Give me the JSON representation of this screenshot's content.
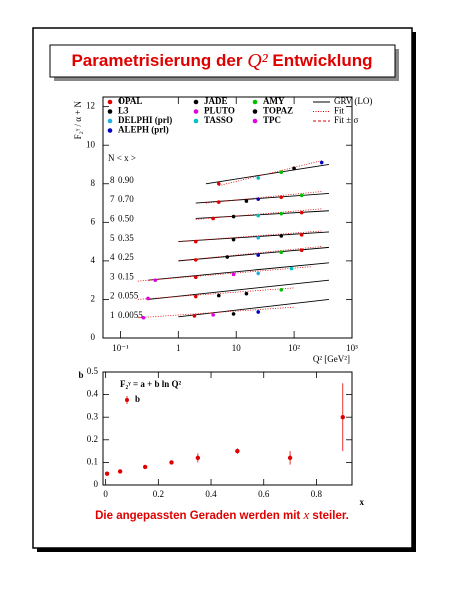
{
  "title": [
    "Parametrisierung der ",
    "Q²",
    " Entwicklung"
  ],
  "footer": [
    "Die angepassten Geraden werden mit ",
    "x",
    " steiler."
  ],
  "chart_data": [
    {
      "type": "line",
      "y_label": "F₂ᵞ / α + N",
      "x_label": "Q² [GeV²]",
      "log_x": true,
      "xlim": [
        0.05,
        1000
      ],
      "xticks": [
        {
          "value": 0.1,
          "label": "10⁻¹"
        },
        1,
        10,
        {
          "value": 100,
          "label": "10²"
        },
        {
          "value": 1000,
          "label": "10³"
        }
      ],
      "ylim": [
        0,
        12.5
      ],
      "yticks": [
        0,
        2,
        4,
        6,
        8,
        10,
        12
      ],
      "legend": [
        {
          "name": "OPAL",
          "color": "#e00000"
        },
        {
          "name": "L3",
          "color": "#000000"
        },
        {
          "name": "DELPHI (prl)",
          "color": "#20b0e0"
        },
        {
          "name": "ALEPH (prl)",
          "color": "#0000c0"
        },
        {
          "name": "JADE",
          "color": "#000000"
        },
        {
          "name": "PLUTO",
          "color": "#e000e0"
        },
        {
          "name": "TASSO",
          "color": "#00c0c0"
        },
        {
          "name": "AMY",
          "color": "#00c000"
        },
        {
          "name": "TOPAZ",
          "color": "#000000"
        },
        {
          "name": "TPC",
          "color": "#e000e0"
        }
      ],
      "line_legend": [
        {
          "name": "GRV (LO)",
          "color": "#000000",
          "dash": "none"
        },
        {
          "name": "Fit",
          "color": "#e00000",
          "dash": "1,1.5"
        },
        {
          "name": "Fit ± σ",
          "color": "#e00000",
          "dash": "3,2"
        }
      ],
      "bin_header": "N  < x >",
      "bins": [
        {
          "N": 1,
          "x": "0.0055",
          "grv_q2": [
            1,
            400
          ],
          "grv": [
            1.1,
            2.0
          ],
          "fit_q2": [
            0.2,
            100
          ],
          "fit": [
            1.05,
            1.6
          ],
          "points": [
            {
              "q2": 0.25,
              "v": 1.05,
              "exp": 9
            },
            {
              "q2": 1.9,
              "v": 1.15,
              "exp": 0
            },
            {
              "q2": 4,
              "v": 1.2,
              "exp": 5
            },
            {
              "q2": 9,
              "v": 1.25,
              "exp": 1
            },
            {
              "q2": 24,
              "v": 1.35,
              "exp": 3
            }
          ]
        },
        {
          "N": 2,
          "x": "0.055",
          "grv_q2": [
            0.3,
            400
          ],
          "grv": [
            2.0,
            3.0
          ],
          "fit_q2": [
            0.2,
            100
          ],
          "fit": [
            2.0,
            2.6
          ],
          "points": [
            {
              "q2": 0.3,
              "v": 2.05,
              "exp": 9
            },
            {
              "q2": 2,
              "v": 2.15,
              "exp": 0
            },
            {
              "q2": 5,
              "v": 2.2,
              "exp": 4
            },
            {
              "q2": 15,
              "v": 2.3,
              "exp": 1
            },
            {
              "q2": 60,
              "v": 2.5,
              "exp": 7
            }
          ]
        },
        {
          "N": 3,
          "x": "0.15",
          "grv_q2": [
            0.3,
            400
          ],
          "grv": [
            3.0,
            3.9
          ],
          "fit_q2": [
            0.2,
            200
          ],
          "fit": [
            2.95,
            3.7
          ],
          "points": [
            {
              "q2": 0.4,
              "v": 3.0,
              "exp": 9
            },
            {
              "q2": 2,
              "v": 3.15,
              "exp": 0
            },
            {
              "q2": 9,
              "v": 3.3,
              "exp": 5
            },
            {
              "q2": 24,
              "v": 3.35,
              "exp": 2
            },
            {
              "q2": 90,
              "v": 3.6,
              "exp": 6
            }
          ]
        },
        {
          "N": 4,
          "x": "0.25",
          "grv_q2": [
            1,
            400
          ],
          "grv": [
            4.0,
            4.7
          ],
          "fit_q2": [
            1,
            300
          ],
          "fit": [
            4.0,
            4.75
          ],
          "points": [
            {
              "q2": 2,
              "v": 4.05,
              "exp": 0
            },
            {
              "q2": 7,
              "v": 4.2,
              "exp": 1
            },
            {
              "q2": 24,
              "v": 4.3,
              "exp": 3
            },
            {
              "q2": 60,
              "v": 4.45,
              "exp": 7
            },
            {
              "q2": 135,
              "v": 4.55,
              "exp": 0
            }
          ]
        },
        {
          "N": 5,
          "x": "0.35",
          "grv_q2": [
            1,
            400
          ],
          "grv": [
            5.0,
            5.5
          ],
          "fit_q2": [
            1,
            300
          ],
          "fit": [
            5.0,
            5.55
          ],
          "points": [
            {
              "q2": 2,
              "v": 5.0,
              "exp": 0
            },
            {
              "q2": 9,
              "v": 5.1,
              "exp": 4
            },
            {
              "q2": 24,
              "v": 5.2,
              "exp": 2
            },
            {
              "q2": 60,
              "v": 5.3,
              "exp": 8
            },
            {
              "q2": 135,
              "v": 5.35,
              "exp": 0
            }
          ]
        },
        {
          "N": 6,
          "x": "0.50",
          "grv_q2": [
            2,
            400
          ],
          "grv": [
            6.2,
            6.6
          ],
          "fit_q2": [
            2,
            300
          ],
          "fit": [
            6.15,
            6.7
          ],
          "points": [
            {
              "q2": 4,
              "v": 6.2,
              "exp": 0
            },
            {
              "q2": 9,
              "v": 6.3,
              "exp": 1
            },
            {
              "q2": 24,
              "v": 6.35,
              "exp": 6
            },
            {
              "q2": 60,
              "v": 6.45,
              "exp": 7
            },
            {
              "q2": 135,
              "v": 6.5,
              "exp": 0
            }
          ]
        },
        {
          "N": 7,
          "x": "0.70",
          "grv_q2": [
            2,
            400
          ],
          "grv": [
            7.0,
            7.5
          ],
          "fit_q2": [
            3,
            300
          ],
          "fit": [
            7.0,
            7.6
          ],
          "points": [
            {
              "q2": 5,
              "v": 7.05,
              "exp": 0
            },
            {
              "q2": 15,
              "v": 7.1,
              "exp": 1
            },
            {
              "q2": 24,
              "v": 7.2,
              "exp": 3
            },
            {
              "q2": 60,
              "v": 7.3,
              "exp": 0
            },
            {
              "q2": 135,
              "v": 7.4,
              "exp": 7
            }
          ]
        },
        {
          "N": 8,
          "x": "0.90",
          "grv_q2": [
            3,
            400
          ],
          "grv": [
            8.0,
            9.0
          ],
          "fit_q2": [
            5,
            300
          ],
          "fit": [
            7.9,
            9.2
          ],
          "points": [
            {
              "q2": 5,
              "v": 8.0,
              "exp": 0
            },
            {
              "q2": 24,
              "v": 8.3,
              "exp": 6
            },
            {
              "q2": 60,
              "v": 8.6,
              "exp": 7
            },
            {
              "q2": 100,
              "v": 8.8,
              "exp": 1
            },
            {
              "q2": 300,
              "v": 9.1,
              "exp": 3
            }
          ]
        }
      ]
    },
    {
      "type": "scatter",
      "y_label": "b",
      "x_label": "x",
      "legend_formula": "F₂ᵞ = a + b ln Q²",
      "series": [
        {
          "name": "b",
          "color": "#e00000",
          "x": [
            0.0055,
            0.055,
            0.15,
            0.25,
            0.35,
            0.5,
            0.7,
            0.9
          ],
          "values": [
            0.05,
            0.06,
            0.08,
            0.1,
            0.12,
            0.15,
            0.12,
            0.3
          ],
          "errors": [
            0.005,
            0.005,
            0.006,
            0.008,
            0.02,
            0.012,
            0.03,
            0.15
          ]
        }
      ],
      "xlim": [
        -0.01,
        0.935
      ],
      "xticks": [
        0,
        0.2,
        0.4,
        0.6,
        0.8
      ],
      "ylim": [
        0,
        0.5
      ],
      "yticks": [
        0,
        0.1,
        0.2,
        0.3,
        0.4,
        0.5
      ]
    }
  ]
}
